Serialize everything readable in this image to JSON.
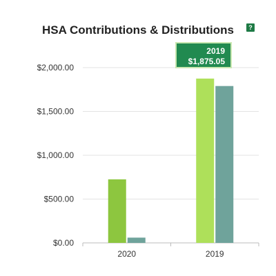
{
  "help_icon": "?",
  "tooltip": {
    "year": "2019",
    "amount": "$1,875.05"
  },
  "chart_data": {
    "type": "bar",
    "title": "HSA Contributions & Distributions",
    "xlabel": "",
    "ylabel": "",
    "categories": [
      "2020",
      "2019"
    ],
    "series": [
      {
        "values": [
          725,
          1875.05
        ],
        "colors": [
          "#8dc63f",
          "#aee05a"
        ]
      },
      {
        "values": [
          60,
          1790
        ],
        "colors": [
          "#6fa39b",
          "#6fa39b"
        ]
      }
    ],
    "ylim": [
      0,
      2000
    ],
    "yticks": [
      0,
      500,
      1000,
      1500,
      2000
    ],
    "ytick_labels": [
      "$0.00",
      "$500.00",
      "$1,000.00",
      "$1,500.00",
      "$2,000.00"
    ],
    "grid": true,
    "legend": "none"
  }
}
